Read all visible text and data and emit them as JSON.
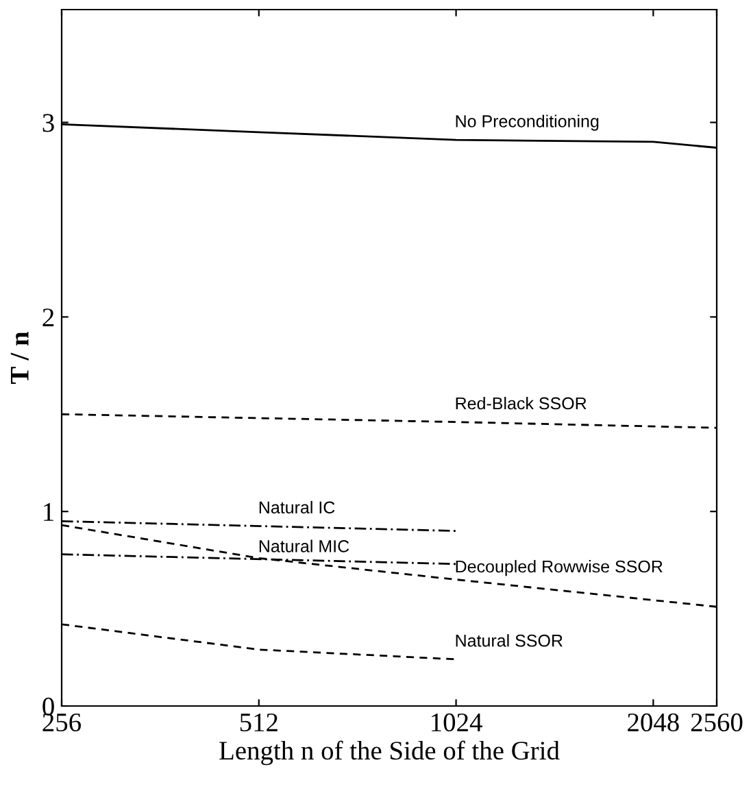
{
  "chart_data": {
    "type": "line",
    "xlabel": "Length n of the Side of the Grid",
    "ylabel": "T / n",
    "log": "x",
    "xlim": [
      256,
      2560
    ],
    "xticks": [
      256,
      512,
      1024,
      2048,
      2560
    ],
    "ylim": [
      0,
      3.58
    ],
    "yticks": [
      0,
      1,
      2,
      3
    ],
    "grid": false,
    "legend": false,
    "marker": "none",
    "series": [
      {
        "name": "No Preconditioning",
        "color": "#000000",
        "line_style": "solid",
        "x": [
          256,
          512,
          1024,
          2048,
          2560
        ],
        "values": [
          2.99,
          2.95,
          2.91,
          2.9,
          2.87
        ]
      },
      {
        "name": "Red-Black SSOR",
        "color": "#000000",
        "line_style": "dashed",
        "x": [
          256,
          1024,
          2560
        ],
        "values": [
          1.5,
          1.46,
          1.43
        ]
      },
      {
        "name": "Natural IC",
        "color": "#000000",
        "line_style": "dashdot",
        "x": [
          256,
          1024
        ],
        "values": [
          0.95,
          0.9
        ]
      },
      {
        "name": "Natural MIC",
        "color": "#000000",
        "line_style": "dashdot",
        "x": [
          256,
          1024
        ],
        "values": [
          0.78,
          0.73
        ]
      },
      {
        "name": "Decoupled Rowwise SSOR",
        "color": "#000000",
        "line_style": "dashed",
        "x": [
          256,
          512,
          1024,
          2560
        ],
        "values": [
          0.93,
          0.76,
          0.65,
          0.51
        ]
      },
      {
        "name": "Natural SSOR",
        "color": "#000000",
        "line_style": "dashed",
        "x": [
          256,
          512,
          1024
        ],
        "values": [
          0.42,
          0.29,
          0.24
        ]
      }
    ]
  }
}
